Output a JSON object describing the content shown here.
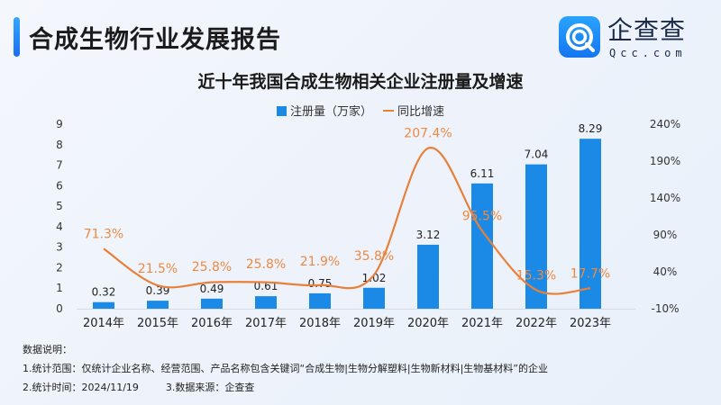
{
  "header": {
    "report_title": "合成生物行业发展报告",
    "logo_text_cn": "企查查",
    "logo_text_en": "Qcc.com"
  },
  "colors": {
    "bar": "#1a8ae6",
    "line": "#e8803a",
    "line_label": "#ec8a45",
    "accent": "#1f7cf2"
  },
  "chart_data": {
    "type": "bar+line",
    "title": "近十年我国合成生物相关企业注册量及增速",
    "legend_position": "top",
    "categories": [
      "2014年",
      "2015年",
      "2016年",
      "2017年",
      "2018年",
      "2019年",
      "2020年",
      "2021年",
      "2022年",
      "2023年"
    ],
    "series": [
      {
        "name": "注册量（万家）",
        "type": "bar",
        "axis": "left",
        "values": [
          0.32,
          0.39,
          0.49,
          0.61,
          0.75,
          1.02,
          3.12,
          6.11,
          7.04,
          8.29
        ],
        "labels": [
          "0.32",
          "0.39",
          "0.49",
          "0.61",
          "0.75",
          "1.02",
          "3.12",
          "6.11",
          "7.04",
          "8.29"
        ]
      },
      {
        "name": "同比增速",
        "type": "line",
        "axis": "right",
        "smooth": true,
        "values": [
          71.3,
          21.5,
          25.8,
          25.8,
          21.9,
          35.8,
          207.4,
          95.5,
          15.3,
          17.7
        ],
        "labels": [
          "71.3%",
          "21.5%",
          "25.8%",
          "25.8%",
          "21.9%",
          "35.8%",
          "207.4%",
          "95.5%",
          "15.3%",
          "17.7%"
        ]
      }
    ],
    "left_axis": {
      "ylim": [
        0,
        9
      ],
      "ticks": [
        "0",
        "1",
        "2",
        "3",
        "4",
        "5",
        "6",
        "7",
        "8",
        "9"
      ]
    },
    "right_axis": {
      "ylim": [
        -10,
        240
      ],
      "ticks": [
        "-10%",
        "40%",
        "90%",
        "140%",
        "190%",
        "240%"
      ]
    },
    "grid": false
  },
  "notes": {
    "heading": "数据说明：",
    "line1": "1.统计范围：仅统计企业名称、经营范围、产品名称包含关键词“合成生物|生物分解塑料|生物新材料|生物基材料”的企业",
    "line2a": "2.统计时间：2024/11/19",
    "line2b": "3.数据来源：企查查"
  }
}
